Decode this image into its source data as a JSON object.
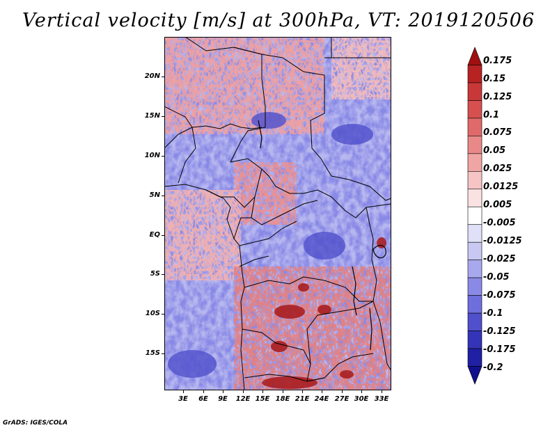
{
  "title": "Vertical velocity [m/s] at 300hPa, VT: 2019120506",
  "map": {
    "region": "Central Africa",
    "lat_labels": [
      "20N",
      "15N",
      "10N",
      "5N",
      "EQ",
      "5S",
      "10S",
      "15S"
    ],
    "lat_values": [
      20,
      15,
      10,
      5,
      0,
      -5,
      -10,
      -15
    ],
    "lon_labels": [
      "3E",
      "6E",
      "9E",
      "12E",
      "15E",
      "18E",
      "21E",
      "24E",
      "27E",
      "30E",
      "33E"
    ],
    "lon_values": [
      3,
      6,
      9,
      12,
      15,
      18,
      21,
      24,
      27,
      30,
      33
    ],
    "lat_range": [
      -20,
      25
    ],
    "lon_range": [
      0.5,
      35
    ]
  },
  "colorbar": {
    "labels": [
      "0.175",
      "0.15",
      "0.125",
      "0.1",
      "0.075",
      "0.05",
      "0.025",
      "0.0125",
      "0.005",
      "-0.005",
      "-0.0125",
      "-0.025",
      "-0.05",
      "-0.075",
      "-0.1",
      "-0.125",
      "-0.175",
      "-0.2"
    ],
    "colors": [
      "#a01010",
      "#b72222",
      "#c83838",
      "#d65050",
      "#e06a6a",
      "#e98888",
      "#f0a5a5",
      "#f6c4c4",
      "#fbe2e2",
      "#ffffff",
      "#e0e0f8",
      "#c8c8f2",
      "#a8a8ee",
      "#8a8ae6",
      "#6e6edc",
      "#5050cc",
      "#3434b8",
      "#2020a4",
      "#10108c"
    ]
  },
  "credit": "GrADS: IGES/COLA"
}
